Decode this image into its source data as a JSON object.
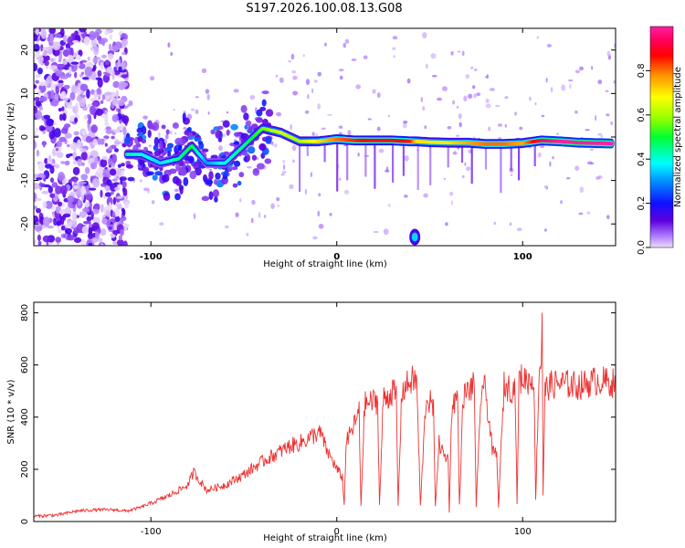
{
  "title": "S197.2026.100.08.13.G08",
  "chart_data": [
    {
      "type": "heatmap",
      "xlabel": "Height of straight line (km)",
      "ylabel": "Frequency (Hz)",
      "xlim": [
        -163,
        150
      ],
      "ylim": [
        -25,
        25
      ],
      "xticks": [
        -100,
        0,
        100
      ],
      "xtick_labels": [
        "-100",
        "0",
        "100"
      ],
      "yticks": [
        -20,
        -10,
        0,
        10,
        20
      ],
      "ytick_labels": [
        "-20",
        "-10",
        "0",
        "10",
        "20"
      ],
      "ridge": {
        "x": [
          -113,
          -105,
          -95,
          -85,
          -78,
          -70,
          -60,
          -50,
          -40,
          -30,
          -20,
          -10,
          0,
          10,
          20,
          30,
          40,
          43,
          50,
          60,
          70,
          80,
          90,
          100,
          110,
          120,
          130,
          148
        ],
        "freq": [
          -4,
          -4,
          -6,
          -5,
          -2,
          -6,
          -6,
          -2,
          2,
          1,
          -1,
          -1,
          -0.5,
          -0.8,
          -0.8,
          -0.8,
          -1,
          -1,
          -1.2,
          -1.3,
          -1.3,
          -1.6,
          -1.6,
          -1.4,
          -0.8,
          -1,
          -1.3,
          -1.5
        ],
        "amplitude": [
          0.45,
          0.4,
          0.35,
          0.45,
          0.5,
          0.3,
          0.4,
          0.45,
          0.55,
          0.65,
          0.6,
          0.7,
          0.8,
          0.85,
          0.9,
          0.9,
          0.85,
          0.7,
          0.7,
          0.7,
          0.75,
          0.8,
          0.8,
          0.75,
          0.95,
          1.0,
          1.0,
          1.0
        ]
      },
      "isolated_spot": {
        "x": 42,
        "freq": -23,
        "amplitude": 0.35
      },
      "noise_region_x": [
        -163,
        -113
      ],
      "colorbar": {
        "label": "Normalized spectral amplitude",
        "range": [
          0,
          1
        ],
        "ticks": [
          0.0,
          0.2,
          0.4,
          0.6,
          0.8
        ],
        "tick_labels": [
          "0.0",
          "0.2",
          "0.4",
          "0.6",
          "0.8"
        ],
        "colors": [
          "#e8d8f8",
          "#9b59ff",
          "#5500dd",
          "#0000ff",
          "#0090ff",
          "#00ffff",
          "#00ff40",
          "#a0ff00",
          "#ffff00",
          "#ff9000",
          "#ff0000",
          "#ff0060",
          "#ff20a0"
        ]
      }
    },
    {
      "type": "line",
      "xlabel": "Height of straight line (km)",
      "ylabel": "SNR (10 * v/v)",
      "xlim": [
        -163,
        150
      ],
      "ylim": [
        0,
        840
      ],
      "xticks": [
        -100,
        0,
        100
      ],
      "xtick_labels": [
        "-100",
        "0",
        "100"
      ],
      "yticks": [
        0,
        200,
        400,
        600,
        800
      ],
      "ytick_labels": [
        "0",
        "200",
        "400",
        "600",
        "800"
      ],
      "color": "#ee3333",
      "series": [
        {
          "name": "SNR",
          "x": [
            -163,
            -150,
            -140,
            -130,
            -120,
            -113,
            -105,
            -100,
            -90,
            -80,
            -77,
            -70,
            -60,
            -50,
            -40,
            -30,
            -25,
            -20,
            -15,
            -10,
            -8,
            -6,
            -2,
            0,
            3,
            4,
            5,
            10,
            12,
            13,
            15,
            20,
            22,
            23,
            25,
            28,
            30,
            32,
            33,
            35,
            40,
            43,
            45,
            48,
            50,
            52,
            53,
            55,
            58,
            60,
            60.5,
            62,
            65,
            66,
            68,
            72,
            74,
            75,
            78,
            80,
            84,
            86,
            87,
            90,
            94,
            96,
            97,
            98,
            100,
            104,
            106,
            107,
            109,
            110,
            110.5,
            111,
            112,
            114,
            120,
            130,
            140,
            150
          ],
          "y": [
            20,
            25,
            40,
            45,
            45,
            40,
            55,
            70,
            100,
            140,
            190,
            120,
            140,
            180,
            230,
            270,
            290,
            300,
            320,
            340,
            330,
            280,
            230,
            200,
            170,
            60,
            300,
            380,
            420,
            60,
            450,
            460,
            460,
            60,
            470,
            480,
            500,
            480,
            60,
            500,
            540,
            540,
            60,
            470,
            460,
            430,
            60,
            300,
            250,
            240,
            40,
            450,
            480,
            60,
            480,
            510,
            520,
            60,
            530,
            500,
            260,
            260,
            60,
            520,
            510,
            510,
            60,
            540,
            550,
            540,
            560,
            90,
            600,
            610,
            820,
            100,
            500,
            520,
            530,
            520,
            540,
            530
          ]
        }
      ]
    }
  ]
}
